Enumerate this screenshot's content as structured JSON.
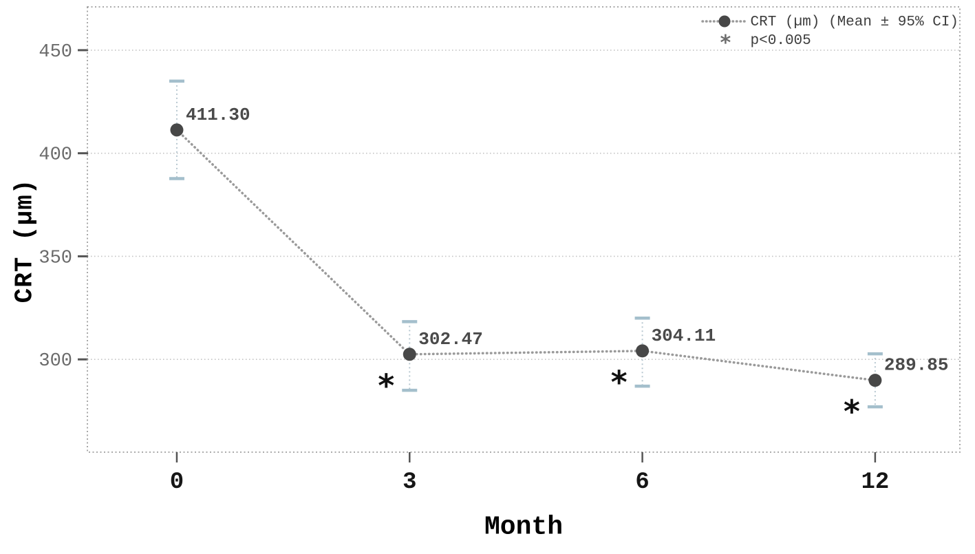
{
  "chart_data": {
    "type": "line",
    "title": "",
    "xlabel": "Month",
    "ylabel": "CRT (µm)",
    "categories": [
      "0",
      "3",
      "6",
      "12"
    ],
    "x_values": [
      0,
      3,
      6,
      12
    ],
    "series": [
      {
        "name": "CRT (µm) (Mean ± 95% CI)",
        "values": [
          411.3,
          302.47,
          304.11,
          289.85
        ],
        "value_labels": [
          "411.30",
          "302.47",
          "304.11",
          "289.85"
        ],
        "ci_upper": [
          435.0,
          318.3,
          320.0,
          302.7
        ],
        "ci_lower": [
          387.7,
          285.0,
          287.0,
          277.0
        ],
        "significant": [
          false,
          true,
          true,
          true
        ]
      }
    ],
    "significance_marker": "∗",
    "yticks": [
      300,
      350,
      400,
      450
    ],
    "ytick_labels": [
      "300",
      "350",
      "400",
      "450"
    ],
    "ylim": [
      255,
      471
    ],
    "grid": "horizontal-dotted",
    "line_style": "dotted",
    "marker": "filled-circle",
    "legend": {
      "position": "top-right",
      "entries": [
        {
          "marker": "dotted-line-circle",
          "label": "CRT (µm) (Mean ± 95% CI)"
        },
        {
          "marker": "asterisk",
          "label": "p<0.005"
        }
      ]
    },
    "colors": {
      "point": "#474747",
      "line": "#9a9a9a",
      "grid": "#c2c2c2",
      "border": "#9e9e9e",
      "tick": "#555555",
      "error_cap": "#a4bfcc",
      "error_line": "#b7c7d0",
      "value_label": "#4a4a4a",
      "x_tick_label": "#161616",
      "y_tick_label": "#6a6a6a",
      "axis_title": "#000000",
      "legend_text": "#3d3d3d",
      "asterisk": "#111111"
    }
  }
}
